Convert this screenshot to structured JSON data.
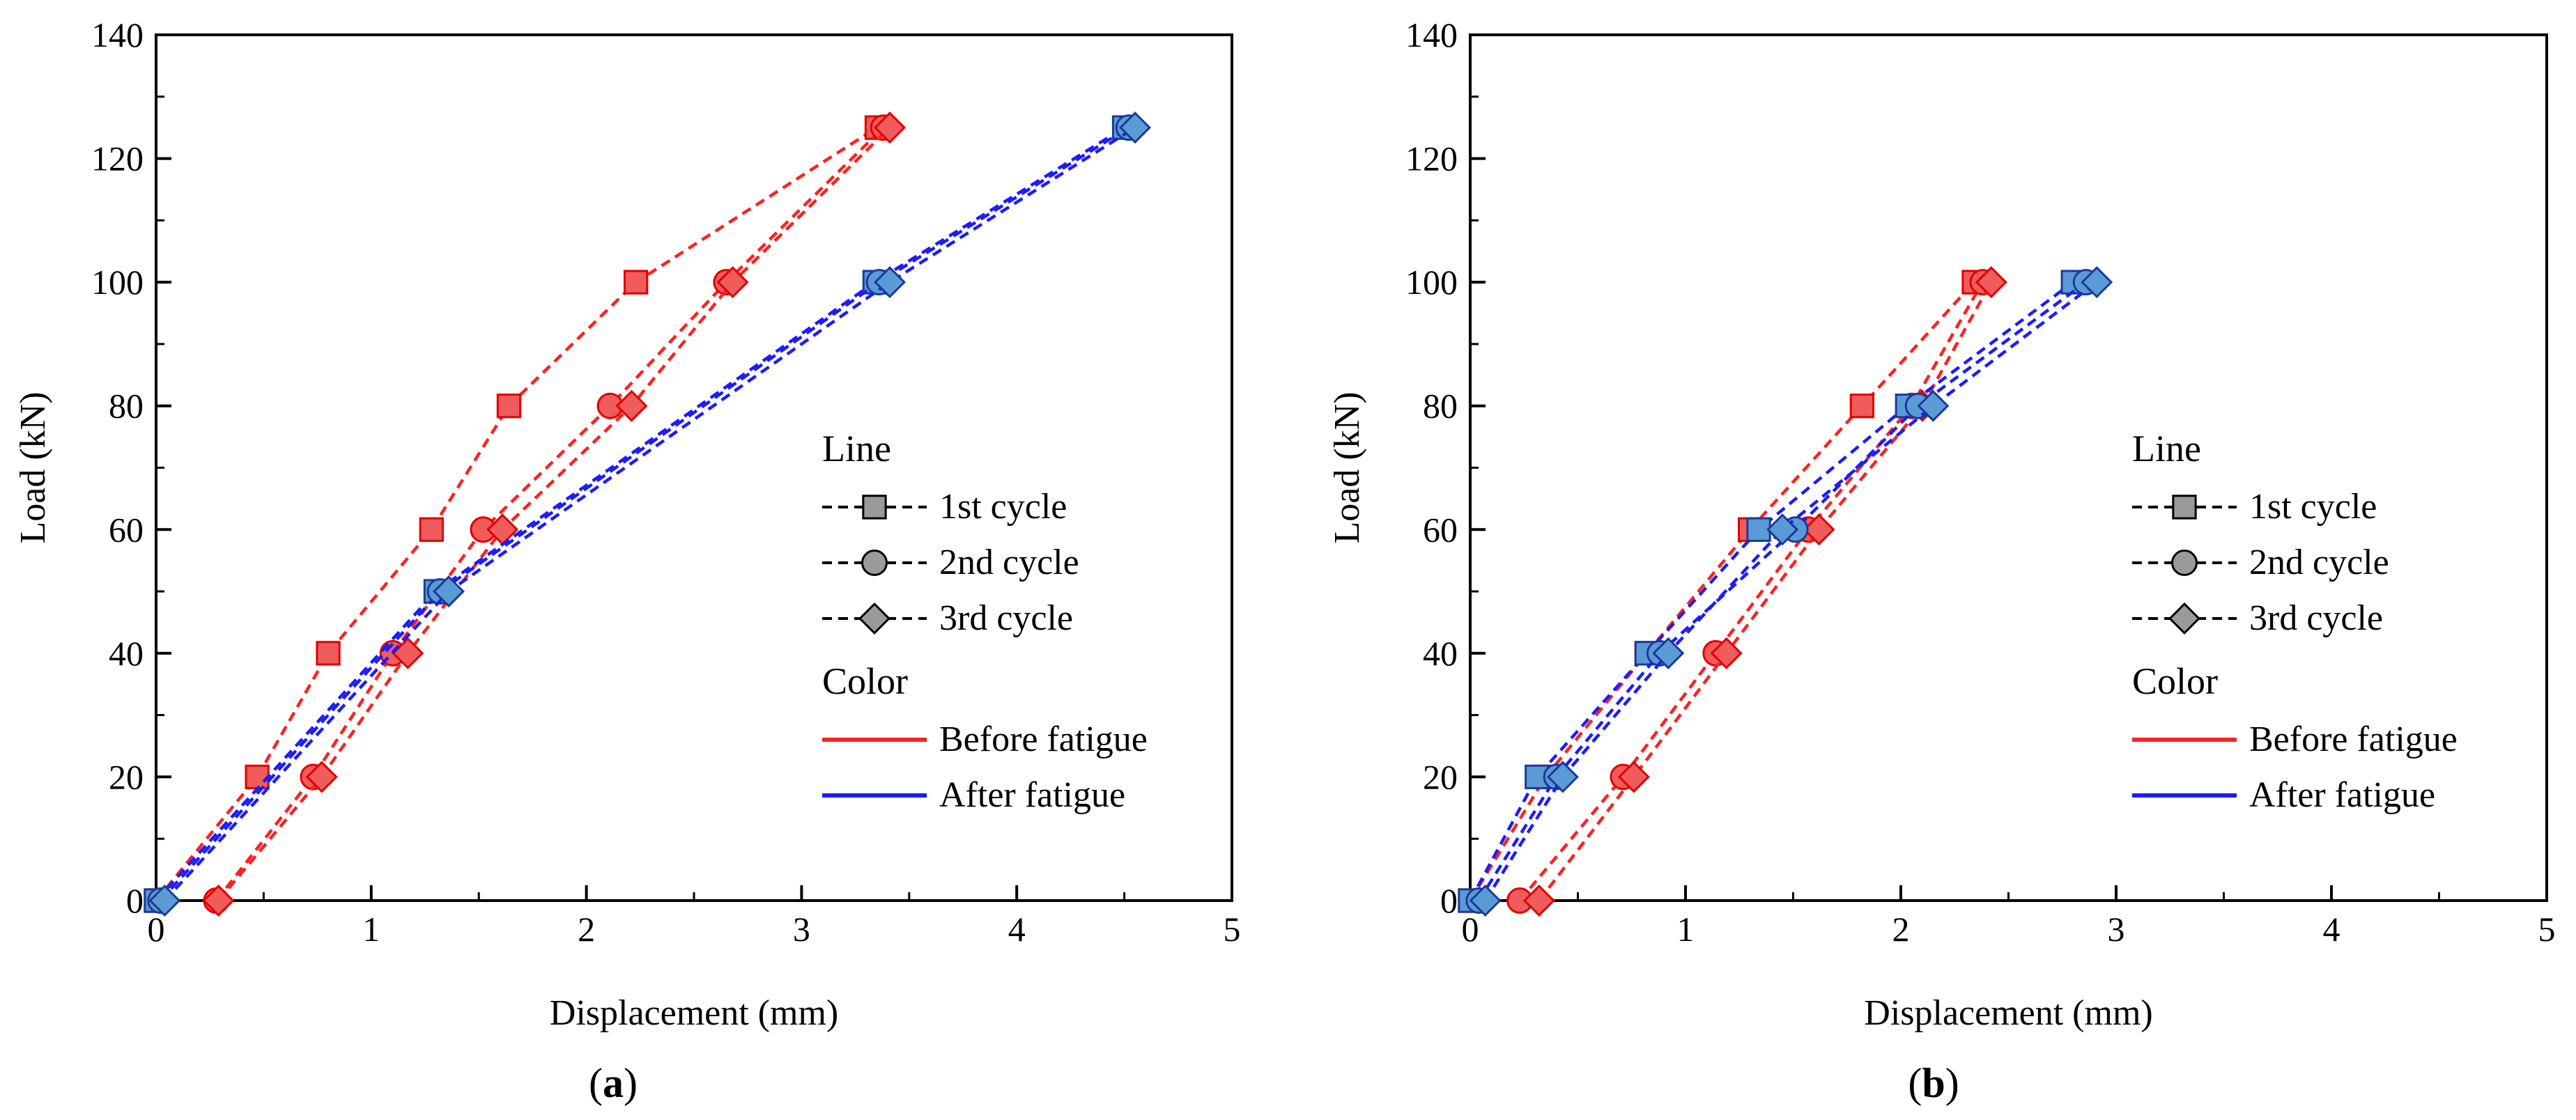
{
  "colors": {
    "before": "#ff2020",
    "after": "#1c1cff",
    "before_fill": "#f05b5b",
    "after_fill": "#5b9bd5",
    "marker_edge_before": "#e00000",
    "marker_edge_after": "#1a3a9a",
    "legend_marker_fill": "#9a9a9a"
  },
  "chart_data": [
    {
      "type": "line",
      "panel_label": {
        "open": "(",
        "letter": "a",
        "close": ")"
      },
      "xlabel": "Displacement (mm)",
      "ylabel": "Load (kN)",
      "xlim": [
        0,
        5
      ],
      "ylim": [
        0,
        140
      ],
      "xticks": [
        "0",
        "1",
        "2",
        "3",
        "4",
        "5"
      ],
      "yticks": [
        "0",
        "20",
        "40",
        "60",
        "80",
        "100",
        "120",
        "140"
      ],
      "grid": false,
      "legend": {
        "placement": "right-middle",
        "line_title": "Line",
        "color_title": "Color",
        "cycles": [
          {
            "label": "1st cycle",
            "marker": "square"
          },
          {
            "label": "2nd cycle",
            "marker": "circle"
          },
          {
            "label": "3rd cycle",
            "marker": "diamond"
          }
        ],
        "colors": [
          {
            "label": "Before fatigue",
            "color_key": "before"
          },
          {
            "label": "After fatigue",
            "color_key": "after"
          }
        ]
      },
      "series": [
        {
          "name": "Before fatigue - 1st cycle",
          "color_key": "before",
          "marker": "square",
          "x": [
            0.0,
            0.47,
            0.8,
            1.28,
            1.64,
            2.23,
            3.35
          ],
          "y": [
            0,
            20,
            40,
            60,
            80,
            100,
            125
          ]
        },
        {
          "name": "Before fatigue - 2nd cycle",
          "color_key": "before",
          "marker": "circle",
          "x": [
            0.28,
            0.73,
            1.1,
            1.52,
            2.11,
            2.65,
            3.38
          ],
          "y": [
            0,
            20,
            40,
            60,
            80,
            100,
            125
          ]
        },
        {
          "name": "Before fatigue - 3rd cycle",
          "color_key": "before",
          "marker": "diamond",
          "x": [
            0.29,
            0.77,
            1.17,
            1.61,
            2.21,
            2.68,
            3.41
          ],
          "y": [
            0,
            20,
            40,
            60,
            80,
            100,
            125
          ]
        },
        {
          "name": "After fatigue - 1st cycle",
          "color_key": "after",
          "marker": "square",
          "x": [
            0.0,
            1.3,
            3.34,
            4.5
          ],
          "y": [
            0,
            50,
            100,
            125
          ]
        },
        {
          "name": "After fatigue - 2nd cycle",
          "color_key": "after",
          "marker": "circle",
          "x": [
            0.02,
            1.32,
            3.36,
            4.52
          ],
          "y": [
            0,
            50,
            100,
            125
          ]
        },
        {
          "name": "After fatigue - 3rd cycle",
          "color_key": "after",
          "marker": "diamond",
          "x": [
            0.04,
            1.36,
            3.41,
            4.55
          ],
          "y": [
            0,
            50,
            100,
            125
          ]
        }
      ]
    },
    {
      "type": "line",
      "panel_label": {
        "open": "(",
        "letter": "b",
        "close": ")"
      },
      "xlabel": "Displacement (mm)",
      "ylabel": "Load (kN)",
      "xlim": [
        0,
        5
      ],
      "ylim": [
        0,
        140
      ],
      "xticks": [
        "0",
        "1",
        "2",
        "3",
        "4",
        "5"
      ],
      "yticks": [
        "0",
        "20",
        "40",
        "60",
        "80",
        "100",
        "120",
        "140"
      ],
      "grid": false,
      "legend": {
        "placement": "right-middle",
        "line_title": "Line",
        "color_title": "Color",
        "cycles": [
          {
            "label": "1st cycle",
            "marker": "square"
          },
          {
            "label": "2nd cycle",
            "marker": "circle"
          },
          {
            "label": "3rd cycle",
            "marker": "diamond"
          }
        ],
        "colors": [
          {
            "label": "Before fatigue",
            "color_key": "before"
          },
          {
            "label": "After fatigue",
            "color_key": "after"
          }
        ]
      },
      "series": [
        {
          "name": "Before fatigue - 1st cycle",
          "color_key": "before",
          "marker": "square",
          "x": [
            0.0,
            0.35,
            0.82,
            1.3,
            1.82,
            2.34
          ],
          "y": [
            0,
            20,
            40,
            60,
            80,
            100
          ]
        },
        {
          "name": "Before fatigue - 2nd cycle",
          "color_key": "before",
          "marker": "circle",
          "x": [
            0.23,
            0.71,
            1.14,
            1.57,
            2.05,
            2.38
          ],
          "y": [
            0,
            20,
            40,
            60,
            80,
            100
          ]
        },
        {
          "name": "Before fatigue - 3rd cycle",
          "color_key": "before",
          "marker": "diamond",
          "x": [
            0.32,
            0.76,
            1.19,
            1.62,
            2.1,
            2.42
          ],
          "y": [
            0,
            20,
            40,
            60,
            80,
            100
          ]
        },
        {
          "name": "After fatigue - 1st cycle",
          "color_key": "after",
          "marker": "square",
          "x": [
            0.0,
            0.31,
            0.82,
            1.34,
            2.03,
            2.8
          ],
          "y": [
            0,
            20,
            40,
            60,
            80,
            100
          ]
        },
        {
          "name": "After fatigue - 2nd cycle",
          "color_key": "after",
          "marker": "circle",
          "x": [
            0.04,
            0.4,
            0.88,
            1.51,
            2.08,
            2.86
          ],
          "y": [
            0,
            20,
            40,
            60,
            80,
            100
          ]
        },
        {
          "name": "After fatigue - 3rd cycle",
          "color_key": "after",
          "marker": "diamond",
          "x": [
            0.07,
            0.43,
            0.92,
            1.45,
            2.15,
            2.91
          ],
          "y": [
            0,
            20,
            40,
            60,
            80,
            100
          ]
        }
      ]
    }
  ]
}
